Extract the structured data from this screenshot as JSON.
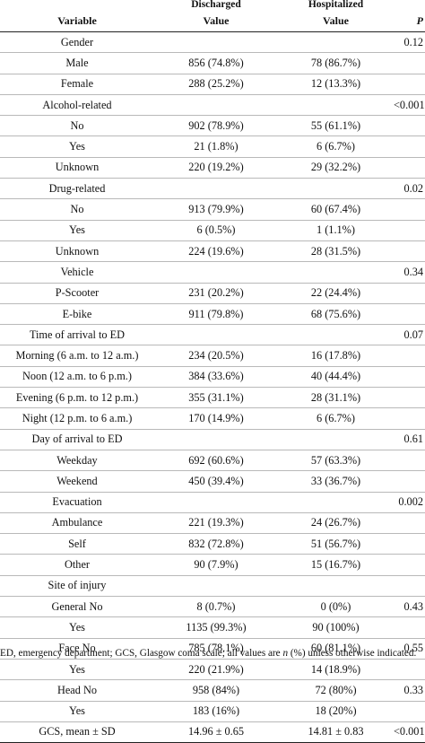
{
  "header": {
    "group1": "Discharged",
    "group2": "Hospitalized",
    "col_variable": "Variable",
    "col_value1": "Value",
    "col_value2": "Value",
    "col_p": "P"
  },
  "rows": [
    {
      "variable": "Gender",
      "discharged": "",
      "hospitalized": "",
      "p": "0.12"
    },
    {
      "variable": "Male",
      "discharged": "856 (74.8%)",
      "hospitalized": "78 (86.7%)",
      "p": ""
    },
    {
      "variable": "Female",
      "discharged": "288 (25.2%)",
      "hospitalized": "12 (13.3%)",
      "p": ""
    },
    {
      "variable": "Alcohol-related",
      "discharged": "",
      "hospitalized": "",
      "p": "<0.001"
    },
    {
      "variable": "No",
      "discharged": "902 (78.9%)",
      "hospitalized": "55 (61.1%)",
      "p": ""
    },
    {
      "variable": "Yes",
      "discharged": "21 (1.8%)",
      "hospitalized": "6 (6.7%)",
      "p": ""
    },
    {
      "variable": "Unknown",
      "discharged": "220 (19.2%)",
      "hospitalized": "29 (32.2%)",
      "p": ""
    },
    {
      "variable": "Drug-related",
      "discharged": "",
      "hospitalized": "",
      "p": "0.02"
    },
    {
      "variable": "No",
      "discharged": "913 (79.9%)",
      "hospitalized": "60 (67.4%)",
      "p": ""
    },
    {
      "variable": "Yes",
      "discharged": "6 (0.5%)",
      "hospitalized": "1 (1.1%)",
      "p": ""
    },
    {
      "variable": "Unknown",
      "discharged": "224 (19.6%)",
      "hospitalized": "28 (31.5%)",
      "p": ""
    },
    {
      "variable": "Vehicle",
      "discharged": "",
      "hospitalized": "",
      "p": "0.34"
    },
    {
      "variable": "P-Scooter",
      "discharged": "231 (20.2%)",
      "hospitalized": "22 (24.4%)",
      "p": ""
    },
    {
      "variable": "E-bike",
      "discharged": "911 (79.8%)",
      "hospitalized": "68 (75.6%)",
      "p": ""
    },
    {
      "variable": "Time of arrival to ED",
      "discharged": "",
      "hospitalized": "",
      "p": "0.07"
    },
    {
      "variable": "Morning (6 a.m. to 12 a.m.)",
      "discharged": "234 (20.5%)",
      "hospitalized": "16 (17.8%)",
      "p": ""
    },
    {
      "variable": "Noon (12 a.m. to 6 p.m.)",
      "discharged": "384 (33.6%)",
      "hospitalized": "40 (44.4%)",
      "p": ""
    },
    {
      "variable": "Evening (6 p.m. to 12 p.m.)",
      "discharged": "355 (31.1%)",
      "hospitalized": "28 (31.1%)",
      "p": ""
    },
    {
      "variable": "Night (12 p.m. to 6 a.m.)",
      "discharged": "170 (14.9%)",
      "hospitalized": "6 (6.7%)",
      "p": ""
    },
    {
      "variable": "Day of arrival to ED",
      "discharged": "",
      "hospitalized": "",
      "p": "0.61"
    },
    {
      "variable": "Weekday",
      "discharged": "692 (60.6%)",
      "hospitalized": "57 (63.3%)",
      "p": ""
    },
    {
      "variable": "Weekend",
      "discharged": "450 (39.4%)",
      "hospitalized": "33 (36.7%)",
      "p": ""
    },
    {
      "variable": "Evacuation",
      "discharged": "",
      "hospitalized": "",
      "p": "0.002"
    },
    {
      "variable": "Ambulance",
      "discharged": "221 (19.3%)",
      "hospitalized": "24 (26.7%)",
      "p": ""
    },
    {
      "variable": "Self",
      "discharged": "832 (72.8%)",
      "hospitalized": "51 (56.7%)",
      "p": ""
    },
    {
      "variable": "Other",
      "discharged": "90 (7.9%)",
      "hospitalized": "15 (16.7%)",
      "p": ""
    },
    {
      "variable": "Site of injury",
      "discharged": "",
      "hospitalized": "",
      "p": ""
    },
    {
      "variable": "General No",
      "discharged": "8 (0.7%)",
      "hospitalized": "0 (0%)",
      "p": "0.43"
    },
    {
      "variable": "Yes",
      "discharged": "1135 (99.3%)",
      "hospitalized": "90 (100%)",
      "p": ""
    },
    {
      "variable": "Face No",
      "discharged": "785 (78.1%)",
      "hospitalized": "60 (81.1%)",
      "p": "0.55"
    },
    {
      "variable": "Yes",
      "discharged": "220 (21.9%)",
      "hospitalized": "14 (18.9%)",
      "p": ""
    },
    {
      "variable": "Head No",
      "discharged": "958 (84%)",
      "hospitalized": "72 (80%)",
      "p": "0.33"
    },
    {
      "variable": "Yes",
      "discharged": "183 (16%)",
      "hospitalized": "18 (20%)",
      "p": ""
    },
    {
      "variable": "GCS, mean ± SD",
      "discharged": "14.96 ± 0.65",
      "hospitalized": "14.81 ± 0.83",
      "p": "<0.001"
    }
  ],
  "footnote": {
    "before": "ED, emergency department; GCS, Glasgow coma scale; all values are ",
    "italic": "n",
    "after": " (%) unless otherwise indicated."
  }
}
